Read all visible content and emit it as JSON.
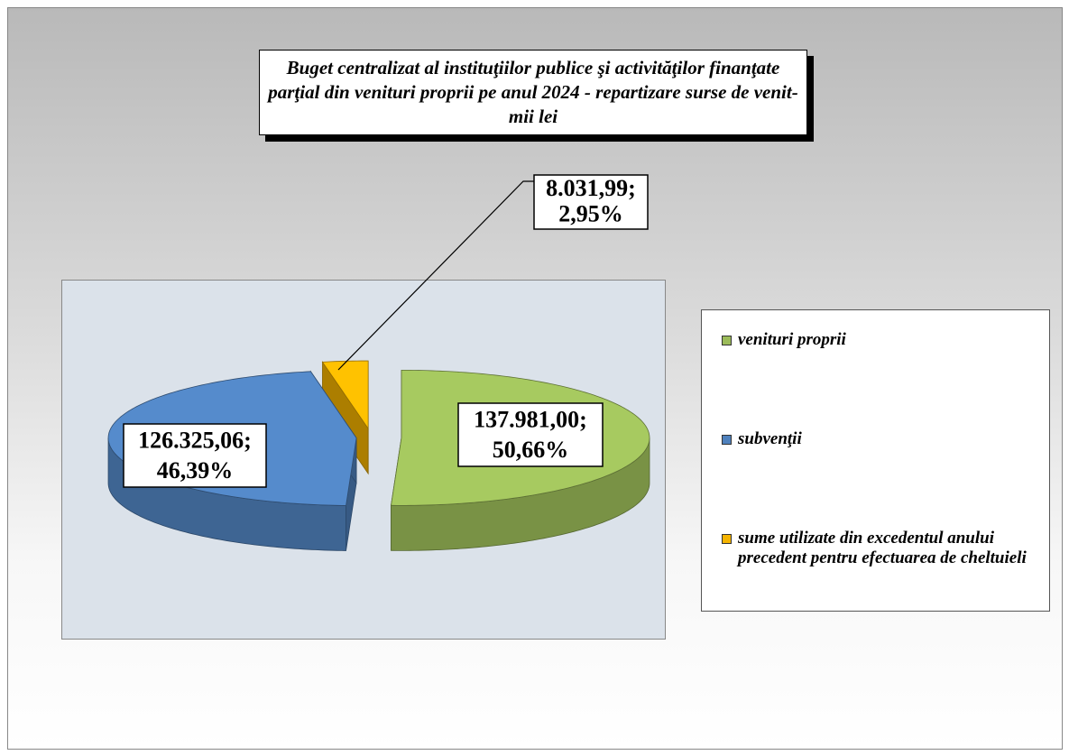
{
  "chart_data": {
    "type": "pie",
    "title": "Buget centralizat al instituţiilor publice şi activităţilor finanţate parţial din venituri proprii pe anul 2024 - repartizare surse de venit- mii lei",
    "categories": [
      "venituri proprii",
      "subvenţii",
      "sume utilizate din excedentul anului precedent pentru efectuarea de cheltuieli"
    ],
    "values": [
      137981.0,
      126325.06,
      8031.99
    ],
    "value_labels": [
      "137.981,00;",
      "126.325,06;",
      "8.031,99;"
    ],
    "percents": [
      50.66,
      46.39,
      2.95
    ],
    "percent_labels": [
      "50,66%",
      "46,39%",
      "2,95%"
    ],
    "colors": [
      "#9bbb59",
      "#4f81bd",
      "#f5b400"
    ],
    "legend": "right"
  }
}
